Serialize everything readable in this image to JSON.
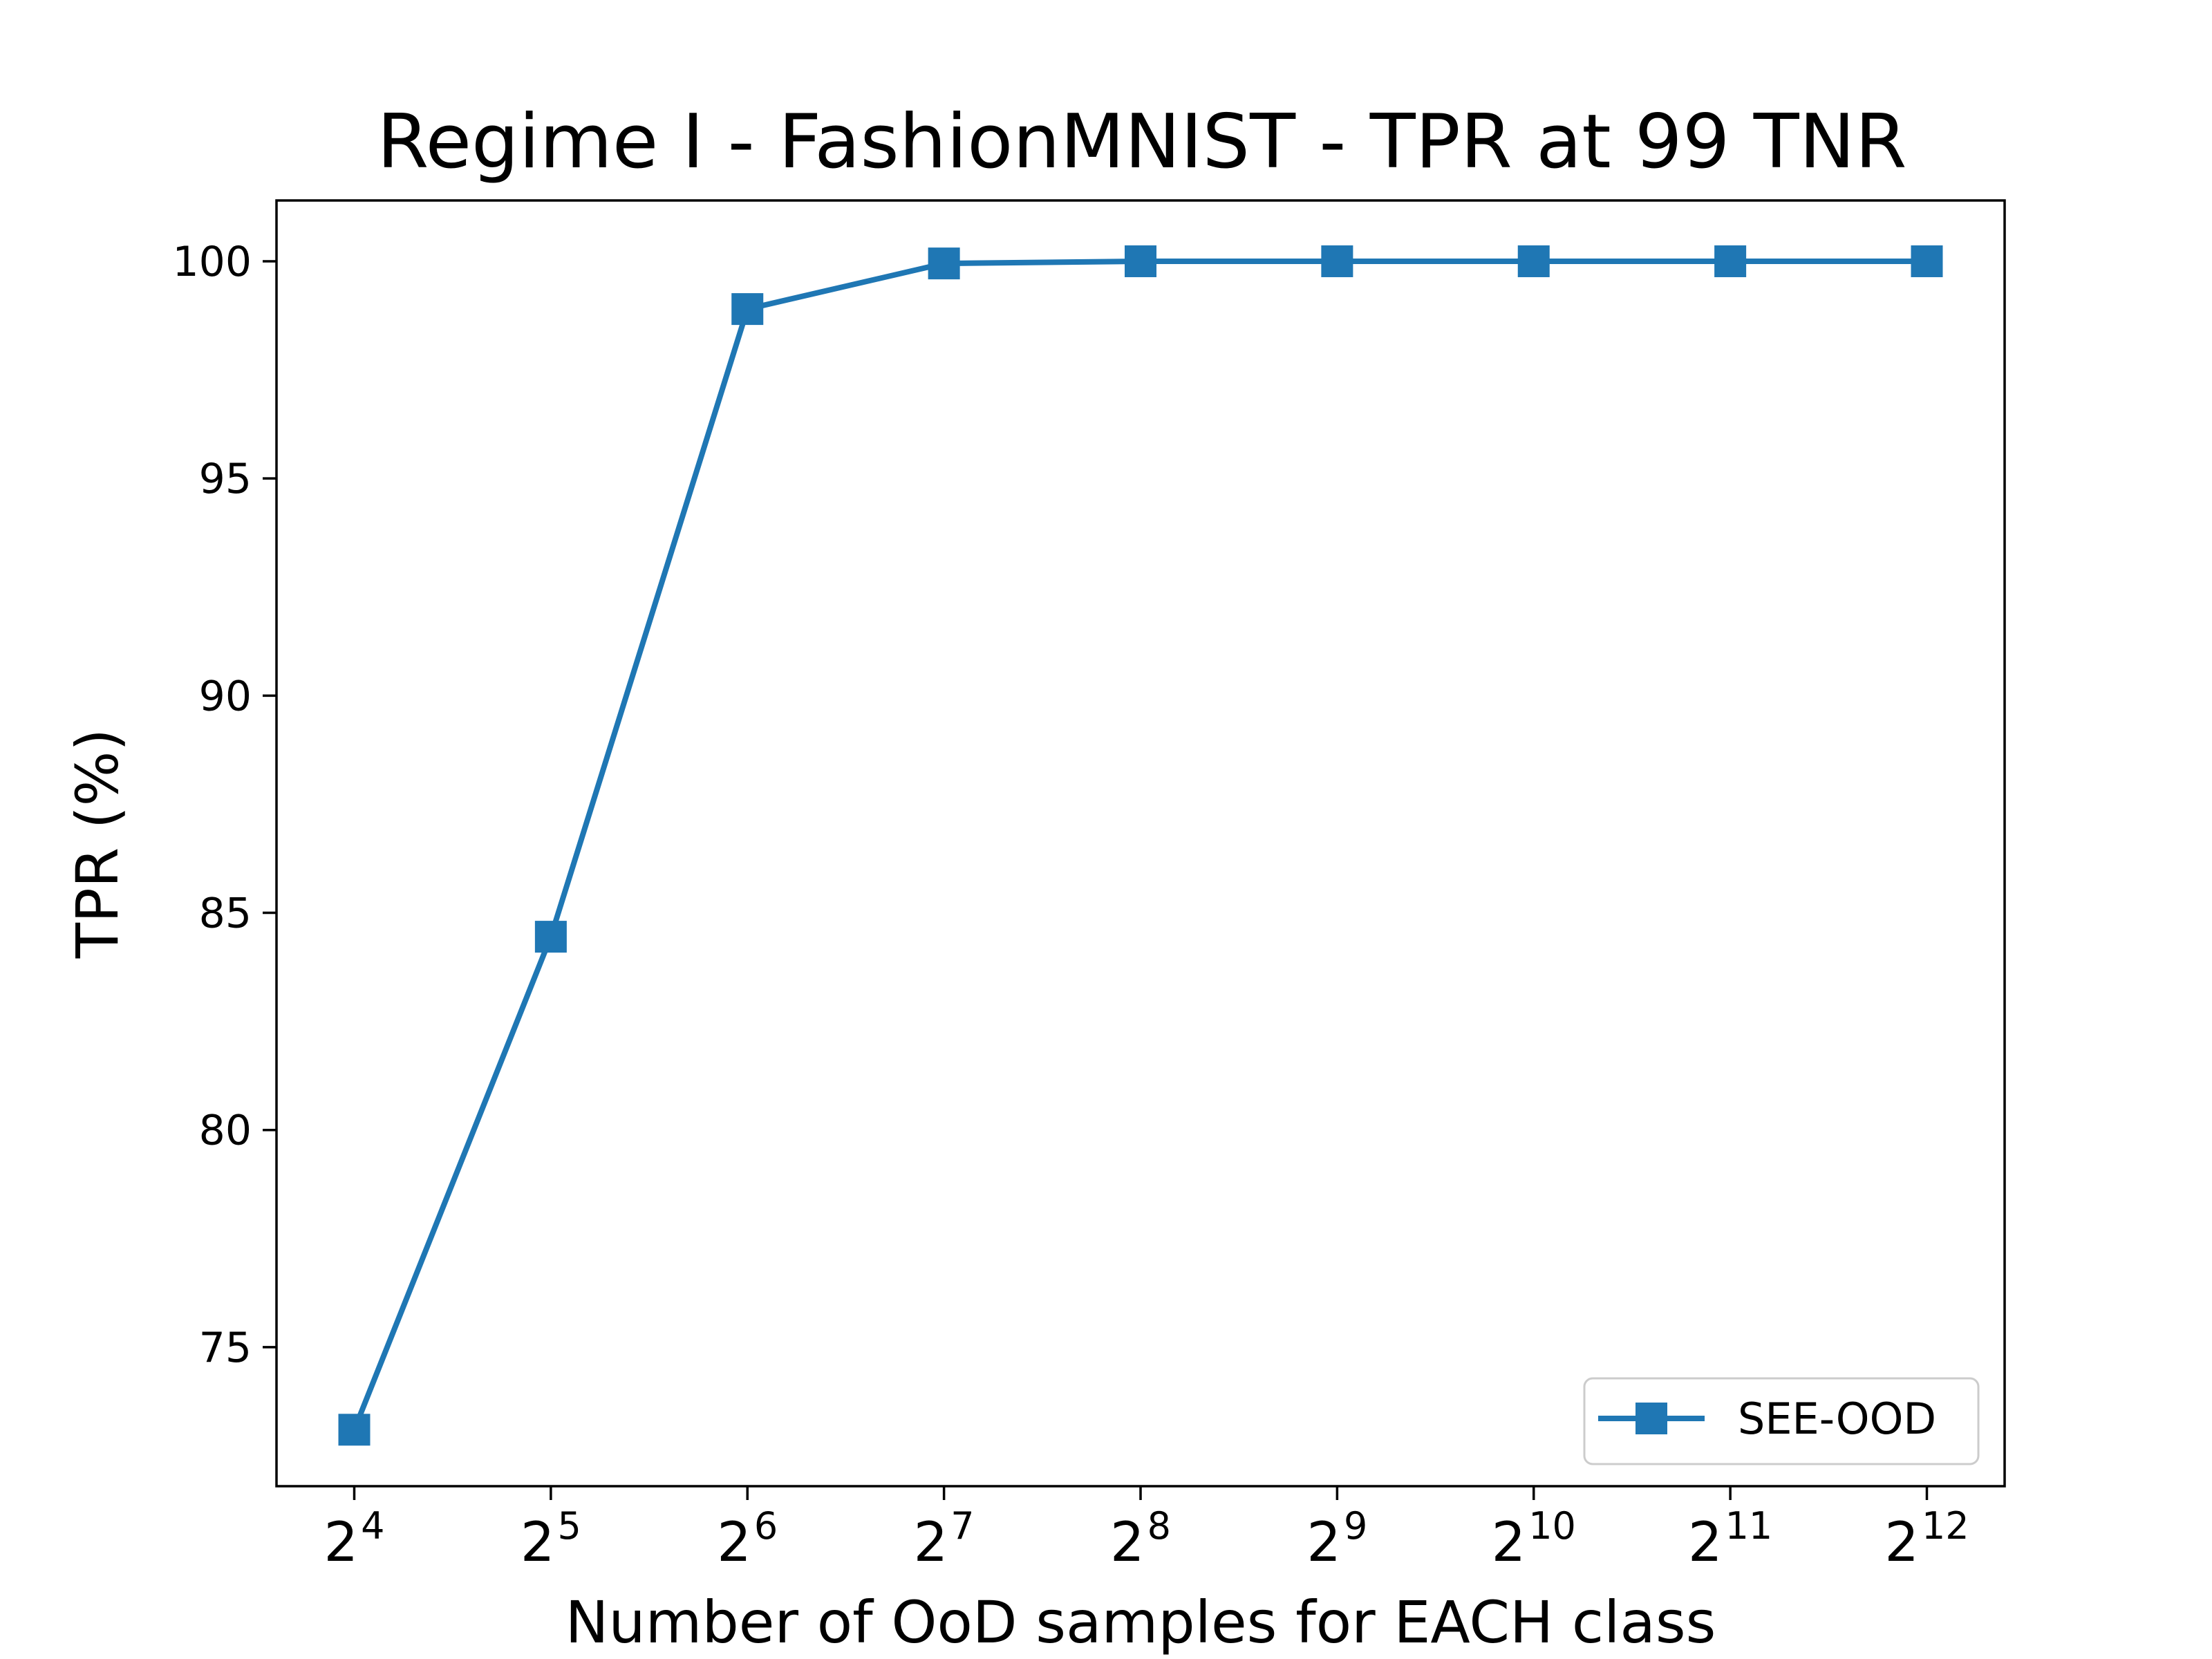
{
  "chart_data": {
    "type": "line",
    "title": "Regime I - FashionMNIST - TPR at 99 TNR",
    "xlabel": "Number of OoD samples for EACH class",
    "ylabel": "TPR (%)",
    "x_scale": "log2",
    "x": [
      16,
      32,
      64,
      128,
      256,
      512,
      1024,
      2048,
      4096
    ],
    "x_tick_labels": [
      {
        "base": "2",
        "exp": "4"
      },
      {
        "base": "2",
        "exp": "5"
      },
      {
        "base": "2",
        "exp": "6"
      },
      {
        "base": "2",
        "exp": "7"
      },
      {
        "base": "2",
        "exp": "8"
      },
      {
        "base": "2",
        "exp": "9"
      },
      {
        "base": "2",
        "exp": "10"
      },
      {
        "base": "2",
        "exp": "11"
      },
      {
        "base": "2",
        "exp": "12"
      }
    ],
    "yticks": [
      75,
      80,
      85,
      90,
      95,
      100
    ],
    "ylim": [
      71.8,
      101.4
    ],
    "grid": false,
    "legend_position": "lower right",
    "series": [
      {
        "name": "SEE-OOD",
        "color": "#1f77b4",
        "marker": "square",
        "values": [
          73.1,
          84.45,
          98.9,
          99.95,
          100.0,
          100.0,
          100.0,
          100.0,
          100.0
        ]
      }
    ]
  }
}
